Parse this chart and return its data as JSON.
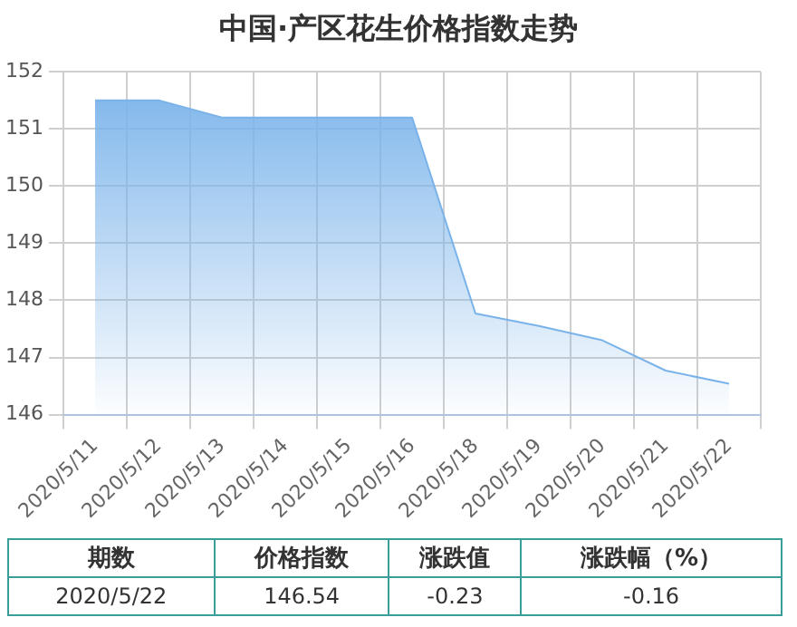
{
  "chart_data": {
    "type": "area",
    "title": "中国·产区花生价格指数走势",
    "categories": [
      "2020/5/11",
      "2020/5/12",
      "2020/5/13",
      "2020/5/14",
      "2020/5/15",
      "2020/5/16",
      "2020/5/18",
      "2020/5/19",
      "2020/5/20",
      "2020/5/21",
      "2020/5/22"
    ],
    "series": [
      {
        "color": "#7ab3ea",
        "values": [
          151.5,
          151.5,
          151.2,
          151.2,
          151.2,
          151.2,
          147.77,
          147.55,
          147.3,
          146.77,
          146.54
        ]
      }
    ],
    "ylim": [
      146,
      152
    ],
    "yticks": [
      146,
      147,
      148,
      149,
      150,
      151,
      152
    ],
    "grid": true,
    "legend": false,
    "marker": "none",
    "annotations": [
      "期数",
      "价格指数",
      "涨跌值",
      "涨跌幅（%）",
      "2020/5/22",
      "146.54",
      "-0.23",
      "-0.16"
    ]
  }
}
